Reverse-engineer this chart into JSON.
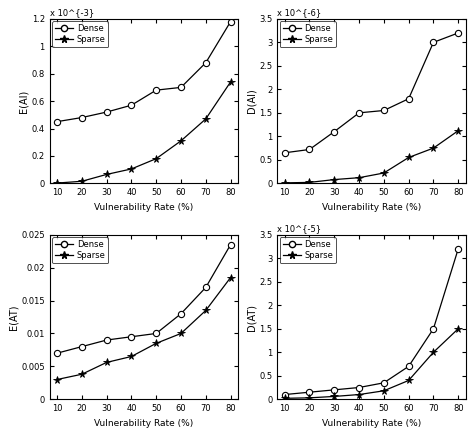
{
  "x": [
    10,
    20,
    30,
    40,
    50,
    60,
    70,
    80
  ],
  "top_left": {
    "ylabel": "E(AI)",
    "xlabel": "Vulnerability Rate (%)",
    "scale_label": "x 10^{-3}",
    "ylim_raw": [
      0,
      1.2
    ],
    "yticks_raw": [
      0,
      0.2,
      0.4,
      0.6,
      0.8,
      1.0,
      1.2
    ],
    "ytick_labels": [
      "0",
      "0.2",
      "0.4",
      "0.6",
      "0.8",
      "1",
      "1.2"
    ],
    "dense": [
      0.45,
      0.48,
      0.52,
      0.57,
      0.68,
      0.7,
      0.88,
      1.18
    ],
    "sparse": [
      0.002,
      0.015,
      0.065,
      0.105,
      0.18,
      0.31,
      0.47,
      0.74
    ]
  },
  "top_right": {
    "ylabel": "D(AI)",
    "xlabel": "Vulnerability Rate (%)",
    "scale_label": "x 10^{-6}",
    "ylim_raw": [
      0,
      3.5
    ],
    "yticks_raw": [
      0,
      0.5,
      1.0,
      1.5,
      2.0,
      2.5,
      3.0,
      3.5
    ],
    "ytick_labels": [
      "0",
      "0.5",
      "1",
      "1.5",
      "2",
      "2.5",
      "3",
      "3.5"
    ],
    "dense": [
      0.65,
      0.72,
      1.1,
      1.5,
      1.55,
      1.8,
      3.0,
      3.2
    ],
    "sparse": [
      0.01,
      0.02,
      0.08,
      0.12,
      0.22,
      0.55,
      0.75,
      1.12
    ]
  },
  "bottom_left": {
    "ylabel": "E(AT)",
    "xlabel": "Vulnerability Rate (%)",
    "scale_label": null,
    "ylim_raw": [
      0,
      0.025
    ],
    "yticks_raw": [
      0,
      0.005,
      0.01,
      0.015,
      0.02,
      0.025
    ],
    "ytick_labels": [
      "0",
      "0.005",
      "0.01",
      "0.015",
      "0.02",
      "0.025"
    ],
    "dense": [
      0.007,
      0.008,
      0.009,
      0.0095,
      0.01,
      0.013,
      0.017,
      0.0235
    ],
    "sparse": [
      0.003,
      0.0038,
      0.0056,
      0.0065,
      0.0085,
      0.01,
      0.0135,
      0.0185
    ]
  },
  "bottom_right": {
    "ylabel": "D(AT)",
    "xlabel": "Vulnerability Rate (%)",
    "scale_label": "x 10^{-5}",
    "ylim_raw": [
      0,
      3.5
    ],
    "yticks_raw": [
      0,
      0.5,
      1.0,
      1.5,
      2.0,
      2.5,
      3.0,
      3.5
    ],
    "ytick_labels": [
      "0",
      "0.5",
      "1",
      "1.5",
      "2",
      "2.5",
      "3",
      "3.5"
    ],
    "dense": [
      0.1,
      0.15,
      0.2,
      0.25,
      0.35,
      0.7,
      1.5,
      3.2
    ],
    "sparse": [
      0.02,
      0.03,
      0.06,
      0.1,
      0.18,
      0.4,
      1.0,
      1.5
    ]
  },
  "line_color": "#000000",
  "dense_marker": "o",
  "sparse_marker": "*",
  "legend_dense": "Dense",
  "legend_sparse": "Sparse",
  "xticks": [
    10,
    20,
    30,
    40,
    50,
    60,
    70,
    80
  ]
}
